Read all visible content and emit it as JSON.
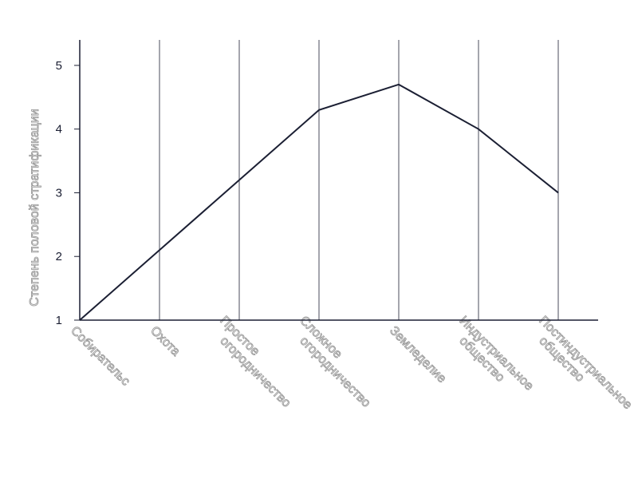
{
  "chart_data": {
    "type": "line",
    "y_label": "Степень половой стратификации",
    "categories": [
      "Собирательс",
      "Охота",
      "Простое огородничество",
      "Сложное огородничество",
      "Земледелие",
      "Индустриальное общество",
      "Постиндустриальное общество"
    ],
    "series": [
      {
        "name": "Степень половой стратификации",
        "color": "#1b1f33",
        "values": [
          1,
          2.1,
          3.2,
          4.3,
          4.7,
          4.0,
          3.0
        ]
      }
    ],
    "ylim": [
      1,
      5.4
    ],
    "yticks": [
      1,
      2,
      3,
      4,
      5
    ],
    "grid": true
  }
}
